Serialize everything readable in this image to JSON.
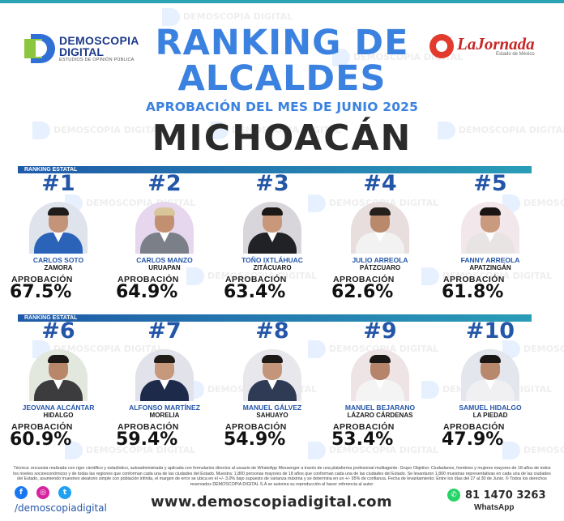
{
  "header": {
    "brand_line1": "DEMOSCOPIA",
    "brand_line2": "DIGITAL",
    "brand_tagline": "ESTUDIOS DE OPINIÓN PÚBLICA",
    "partner_name": "LaJornada",
    "partner_sub": "Estado de México",
    "title_line1": "RANKING DE",
    "title_line2": "ALCALDES",
    "subtitle": "APROBACIÓN DEL MES DE JUNIO 2025",
    "state": "MICHOACÁN"
  },
  "watermark_text": "DEMOSCOPIA DIGITAL",
  "sections": [
    {
      "label": "RANKING ESTATAL"
    },
    {
      "label": "RANKING ESTATAL"
    }
  ],
  "approval_label": "APROBACIÓN",
  "mayors": [
    {
      "rank": "#1",
      "name": "CARLOS SOTO",
      "city": "ZAMORA",
      "approval": "67.5%",
      "approval_value": 67.5
    },
    {
      "rank": "#2",
      "name": "CARLOS MANZO",
      "city": "URUAPAN",
      "approval": "64.9%",
      "approval_value": 64.9
    },
    {
      "rank": "#3",
      "name": "TOÑO IXTLÁHUAC",
      "city": "ZITÁCUARO",
      "approval": "63.4%",
      "approval_value": 63.4
    },
    {
      "rank": "#4",
      "name": "JULIO ARREOLA",
      "city": "PÁTZCUARO",
      "approval": "62.6%",
      "approval_value": 62.6
    },
    {
      "rank": "#5",
      "name": "FANNY ARREOLA",
      "city": "APATZINGÁN",
      "approval": "61.8%",
      "approval_value": 61.8
    },
    {
      "rank": "#6",
      "name": "JEOVANA ALCÁNTAR",
      "city": "HIDALGO",
      "approval": "60.9%",
      "approval_value": 60.9
    },
    {
      "rank": "#7",
      "name": "ALFONSO MARTÍNEZ",
      "city": "MORELIA",
      "approval": "59.4%",
      "approval_value": 59.4
    },
    {
      "rank": "#8",
      "name": "MANUEL GÁLVEZ",
      "city": "SAHUAYO",
      "approval": "54.9%",
      "approval_value": 54.9
    },
    {
      "rank": "#9",
      "name": "MANUEL BEJARANO",
      "city": "LÁZARO CÁRDENAS",
      "approval": "53.4%",
      "approval_value": 53.4
    },
    {
      "rank": "#10",
      "name": "SAMUEL HIDALGO",
      "city": "LA PIEDAD",
      "approval": "47.9%",
      "approval_value": 47.9
    }
  ],
  "photo_palettes": [
    {
      "bg": "#dfe3ec",
      "suit": "#2a63b8",
      "skin": "#c49478",
      "hair": "#1e1b1a"
    },
    {
      "bg": "#e6d6ee",
      "suit": "#7a7f88",
      "skin": "#c29070",
      "hair": "#d8c59a"
    },
    {
      "bg": "#d8d6da",
      "suit": "#202226",
      "skin": "#c9977a",
      "hair": "#1c1816"
    },
    {
      "bg": "#e9dede",
      "suit": "#f2f2f2",
      "skin": "#b9896c",
      "hair": "#26201d"
    },
    {
      "bg": "#f2e7ea",
      "suit": "#e8e4e4",
      "skin": "#c99a7e",
      "hair": "#1a1412"
    },
    {
      "bg": "#e3e8df",
      "suit": "#3c3c3e",
      "skin": "#b8876a",
      "hair": "#1d1917"
    },
    {
      "bg": "#e2e2ea",
      "suit": "#1d2a4a",
      "skin": "#c6987c",
      "hair": "#231d19"
    },
    {
      "bg": "#e8e8ec",
      "suit": "#2f3a55",
      "skin": "#c3957a",
      "hair": "#1e1a18"
    },
    {
      "bg": "#eee4e6",
      "suit": "#f4f4f4",
      "skin": "#b5846a",
      "hair": "#1c1816"
    },
    {
      "bg": "#e3e6ec",
      "suit": "#f0f0f2",
      "skin": "#b8886d",
      "hair": "#1a1614"
    }
  ],
  "footer": {
    "methodology": "Técnica: encuesta realizada con rigor científico y estadístico, autoadministrada y aplicada con formularios directos al usuario de WhatsApp Messenger a través de una plataforma profesional multiagente. Grupo Objetivo: Ciudadanos, hombres y mujeres mayores de 18 años de todos los niveles socioeconómicos y de todas las regiones que conforman cada una de las ciudades del Estado. Muestra: 1,800 personas mayores de 18 años que conforman cada una de las ciudades del Estado. Se levantaron 1,800 muestras representativas en cada una de las ciudades del Estado, asumiendo muestreo aleatorio simple con población infinita, el margen de error se ubica en el +/- 3.0% bajo supuesto de varianza máxima y se determina en un +/- 95% de confianza. Fecha de levantamiento: Entre los días del 27 al 30 de Junio. © Todos los derechos reservados DEMOSCOPIA DIGITAL S.A se autoriza su reproducción al hacer referencia al autor.",
    "handle": "/demoscopiadigital",
    "website": "www.demoscopiadigital.com",
    "whatsapp_number": "81 1470 3263",
    "whatsapp_label": "WhatsApp",
    "social_icons": [
      {
        "icon": "facebook-icon",
        "glyph": "f",
        "color": "#1877f2"
      },
      {
        "icon": "instagram-icon",
        "glyph": "◎",
        "color": "#d6249f"
      },
      {
        "icon": "twitter-icon",
        "glyph": "t",
        "color": "#1da1f2"
      }
    ],
    "whatsapp_icon": {
      "icon": "whatsapp-icon",
      "glyph": "✆",
      "color": "#25d366"
    }
  }
}
